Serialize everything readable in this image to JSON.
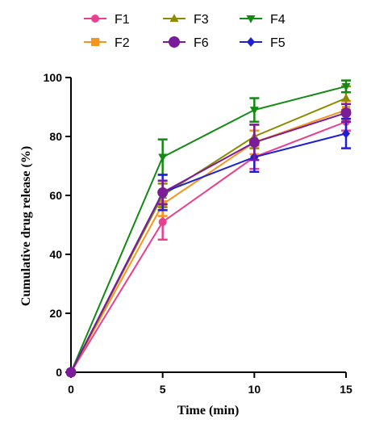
{
  "chart_data": {
    "type": "line",
    "title": "",
    "xlabel": "Time (min)",
    "ylabel": "Cumulative drug release (%)",
    "x": [
      0,
      5,
      10,
      15
    ],
    "x_ticks": [
      "0",
      "5",
      "10",
      "15"
    ],
    "y_ticks": [
      "0",
      "20",
      "40",
      "60",
      "80",
      "100"
    ],
    "xlim": [
      0,
      15
    ],
    "ylim": [
      0,
      100
    ],
    "grid": false,
    "legend_position": "top",
    "series": [
      {
        "name": "F1",
        "color": "#e8408f",
        "marker": "circle",
        "values": [
          0,
          51,
          73,
          85
        ],
        "errors": [
          0,
          6,
          4,
          3
        ]
      },
      {
        "name": "F2",
        "color": "#f7941d",
        "marker": "square",
        "values": [
          0,
          57,
          78,
          89
        ],
        "errors": [
          0,
          4,
          4,
          3
        ]
      },
      {
        "name": "F3",
        "color": "#8b8b00",
        "marker": "triangle-up",
        "values": [
          0,
          60,
          80,
          93
        ],
        "errors": [
          0,
          4,
          4,
          4
        ]
      },
      {
        "name": "F4",
        "color": "#138a13",
        "marker": "triangle-down",
        "values": [
          0,
          73,
          89,
          97
        ],
        "errors": [
          0,
          6,
          4,
          2
        ]
      },
      {
        "name": "F5",
        "color": "#1f1fd6",
        "marker": "diamond",
        "values": [
          0,
          61,
          73,
          81
        ],
        "errors": [
          0,
          6,
          5,
          5
        ]
      },
      {
        "name": "F6",
        "color": "#7a1b9a",
        "marker": "circle",
        "values": [
          0,
          61,
          78,
          88
        ],
        "errors": [
          0,
          4,
          6,
          3
        ]
      }
    ],
    "legend_order": [
      "F1",
      "F3",
      "F4",
      "F2",
      "F6",
      "F5"
    ]
  }
}
